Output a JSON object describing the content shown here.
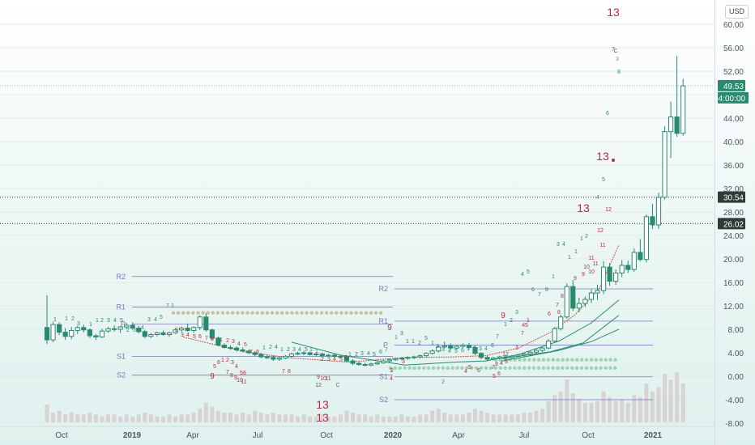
{
  "currency": "USD",
  "chart_data": {
    "type": "candlestick",
    "y_axis": {
      "range": [
        -8,
        64
      ],
      "ticks": [
        -8,
        -4,
        0,
        4,
        8,
        12,
        16,
        20,
        24,
        28,
        32,
        36,
        40,
        44,
        48,
        52,
        56,
        60
      ],
      "tick_labels": [
        "-8.00",
        "-4.00",
        "0.00",
        "4.00",
        "8.00",
        "12.00",
        "16.00",
        "20.00",
        "24.00",
        "28.00",
        "32.00",
        "36.00",
        "40.00",
        "44.00",
        "48.00",
        "52.00",
        "56.00",
        "60.00"
      ]
    },
    "x_axis": {
      "labels": [
        "Oct",
        "2019",
        "Apr",
        "Jul",
        "Oct",
        "2020",
        "Apr",
        "Jul",
        "Oct",
        "2021"
      ],
      "bold_labels": [
        "2019",
        "2020",
        "2021"
      ]
    },
    "candles_note": "weekly OHLC, first candle late Sep 2018, last candle mid Nov 2020",
    "ohlc": [
      [
        8.3,
        13.8,
        5.5,
        6.2
      ],
      [
        6.2,
        9.3,
        5.8,
        8.8
      ],
      [
        8.8,
        9.2,
        7.0,
        7.5
      ],
      [
        7.5,
        8.2,
        6.2,
        6.8
      ],
      [
        6.8,
        8.4,
        6.3,
        7.8
      ],
      [
        7.8,
        8.6,
        7.2,
        8.3
      ],
      [
        8.3,
        8.8,
        7.5,
        7.9
      ],
      [
        7.9,
        8.2,
        6.5,
        6.9
      ],
      [
        6.9,
        7.2,
        6.2,
        6.7
      ],
      [
        6.7,
        8.1,
        6.5,
        7.7
      ],
      [
        7.7,
        8.4,
        7.4,
        8.1
      ],
      [
        8.1,
        8.7,
        7.6,
        8.0
      ],
      [
        8.0,
        8.6,
        7.4,
        8.4
      ],
      [
        8.4,
        9.1,
        8.0,
        8.7
      ],
      [
        8.7,
        9.2,
        7.9,
        8.2
      ],
      [
        8.2,
        8.6,
        7.3,
        7.6
      ],
      [
        7.6,
        7.9,
        6.5,
        6.8
      ],
      [
        6.8,
        7.4,
        6.5,
        7.1
      ],
      [
        7.1,
        7.6,
        6.8,
        7.4
      ],
      [
        7.4,
        7.8,
        6.9,
        7.1
      ],
      [
        7.1,
        7.6,
        6.7,
        7.4
      ],
      [
        7.4,
        8.2,
        7.2,
        7.9
      ],
      [
        7.9,
        8.5,
        7.5,
        8.2
      ],
      [
        8.2,
        9.0,
        7.6,
        7.8
      ],
      [
        7.8,
        8.5,
        7.4,
        8.3
      ],
      [
        8.3,
        10.4,
        7.9,
        10.1
      ],
      [
        10.1,
        10.8,
        7.6,
        7.9
      ],
      [
        7.9,
        8.1,
        6.2,
        6.5
      ],
      [
        6.5,
        6.8,
        5.1,
        5.3
      ],
      [
        5.3,
        5.6,
        4.7,
        4.9
      ],
      [
        4.9,
        5.3,
        4.5,
        4.8
      ],
      [
        4.8,
        5.1,
        4.2,
        4.5
      ],
      [
        4.5,
        4.9,
        4.1,
        4.3
      ],
      [
        4.3,
        4.6,
        3.8,
        4.0
      ],
      [
        4.0,
        4.3,
        3.4,
        3.7
      ],
      [
        3.7,
        4.0,
        3.1,
        3.3
      ],
      [
        3.3,
        3.7,
        2.9,
        3.2
      ],
      [
        3.2,
        3.5,
        2.6,
        2.9
      ],
      [
        2.9,
        3.3,
        2.6,
        3.1
      ],
      [
        3.1,
        3.6,
        2.9,
        3.4
      ],
      [
        3.4,
        4.0,
        3.2,
        3.8
      ],
      [
        3.8,
        4.2,
        3.6,
        3.9
      ],
      [
        3.9,
        4.3,
        3.6,
        4.0
      ],
      [
        4.0,
        4.2,
        3.5,
        3.7
      ],
      [
        3.7,
        4.0,
        3.4,
        3.8
      ],
      [
        3.8,
        4.0,
        3.3,
        3.5
      ],
      [
        3.5,
        3.8,
        3.3,
        3.6
      ],
      [
        3.6,
        3.9,
        3.2,
        3.4
      ],
      [
        3.4,
        3.7,
        3.1,
        3.3
      ],
      [
        3.3,
        3.6,
        2.4,
        2.6
      ],
      [
        2.6,
        2.9,
        1.9,
        2.2
      ],
      [
        2.2,
        2.4,
        1.8,
        2.0
      ],
      [
        2.0,
        2.3,
        1.7,
        1.9
      ],
      [
        1.9,
        2.3,
        1.7,
        2.1
      ],
      [
        2.1,
        2.5,
        1.9,
        2.3
      ],
      [
        2.3,
        2.8,
        2.1,
        2.6
      ],
      [
        2.6,
        3.0,
        2.3,
        2.8
      ],
      [
        2.8,
        3.2,
        2.6,
        3.0
      ],
      [
        3.0,
        3.3,
        2.7,
        3.1
      ],
      [
        3.1,
        3.4,
        2.8,
        3.2
      ],
      [
        3.2,
        3.5,
        2.9,
        3.3
      ],
      [
        3.3,
        3.7,
        3.0,
        3.5
      ],
      [
        3.5,
        4.1,
        3.3,
        3.9
      ],
      [
        3.9,
        4.6,
        3.7,
        4.3
      ],
      [
        4.3,
        5.3,
        4.0,
        5.0
      ],
      [
        5.0,
        5.9,
        4.7,
        5.2
      ],
      [
        5.2,
        5.6,
        4.5,
        4.8
      ],
      [
        4.8,
        5.4,
        4.5,
        5.1
      ],
      [
        5.1,
        5.6,
        4.8,
        5.3
      ],
      [
        5.3,
        5.7,
        4.6,
        4.9
      ],
      [
        4.9,
        5.2,
        3.6,
        3.9
      ],
      [
        3.9,
        4.1,
        2.9,
        3.2
      ],
      [
        3.2,
        3.5,
        2.6,
        2.9
      ],
      [
        2.9,
        3.3,
        2.7,
        3.1
      ],
      [
        3.1,
        3.5,
        2.9,
        3.3
      ],
      [
        3.3,
        3.6,
        2.9,
        3.2
      ],
      [
        3.2,
        3.6,
        3.0,
        3.4
      ],
      [
        3.4,
        3.8,
        3.2,
        3.6
      ],
      [
        3.6,
        4.0,
        3.3,
        3.8
      ],
      [
        3.8,
        4.3,
        3.5,
        4.1
      ],
      [
        4.1,
        4.6,
        3.8,
        4.4
      ],
      [
        4.4,
        5.0,
        4.1,
        4.8
      ],
      [
        4.8,
        6.3,
        4.6,
        6.0
      ],
      [
        6.0,
        8.4,
        5.8,
        8.1
      ],
      [
        8.1,
        10.5,
        7.8,
        10.1
      ],
      [
        10.1,
        15.8,
        9.8,
        15.3
      ],
      [
        15.3,
        16.4,
        11.1,
        11.6
      ],
      [
        11.6,
        13.4,
        10.9,
        12.4
      ],
      [
        12.4,
        13.6,
        11.8,
        13.1
      ],
      [
        13.1,
        14.8,
        12.5,
        14.2
      ],
      [
        14.2,
        15.6,
        13.0,
        14.6
      ],
      [
        14.6,
        19.6,
        14.0,
        18.6
      ],
      [
        18.6,
        19.3,
        15.4,
        16.2
      ],
      [
        16.2,
        18.2,
        15.6,
        17.6
      ],
      [
        17.6,
        19.8,
        16.9,
        18.9
      ],
      [
        18.9,
        19.7,
        17.6,
        18.2
      ],
      [
        18.2,
        21.8,
        17.8,
        21.1
      ],
      [
        21.1,
        23.4,
        19.6,
        19.9
      ],
      [
        19.9,
        27.6,
        19.4,
        27.2
      ],
      [
        27.2,
        29.4,
        25.1,
        25.8
      ],
      [
        25.8,
        31.3,
        25.1,
        30.5
      ],
      [
        30.5,
        42.6,
        30.1,
        41.7
      ],
      [
        41.7,
        46.8,
        37.2,
        44.2
      ],
      [
        44.2,
        54.6,
        40.8,
        41.4
      ],
      [
        41.4,
        50.7,
        41.0,
        49.5
      ]
    ],
    "volumes": [
      0.9,
      0.5,
      0.6,
      0.4,
      0.5,
      0.4,
      0.4,
      0.5,
      0.4,
      0.3,
      0.4,
      0.4,
      0.3,
      0.4,
      0.3,
      0.4,
      0.5,
      0.4,
      0.3,
      0.3,
      0.4,
      0.3,
      0.4,
      0.4,
      0.5,
      0.7,
      1.0,
      0.8,
      0.6,
      0.5,
      0.5,
      0.4,
      0.5,
      0.4,
      0.6,
      0.5,
      0.4,
      0.5,
      0.4,
      0.4,
      0.4,
      0.3,
      0.4,
      0.3,
      0.3,
      0.4,
      0.3,
      0.3,
      0.4,
      0.6,
      0.5,
      0.4,
      0.4,
      0.3,
      0.4,
      0.3,
      0.3,
      0.3,
      0.4,
      0.3,
      0.3,
      0.4,
      0.4,
      0.6,
      0.7,
      0.5,
      0.4,
      0.4,
      0.4,
      0.5,
      0.7,
      0.6,
      0.5,
      0.4,
      0.4,
      0.4,
      0.4,
      0.4,
      0.5,
      0.5,
      0.6,
      0.7,
      1.1,
      1.4,
      1.6,
      2.2,
      1.5,
      1.2,
      1.0,
      1.0,
      1.1,
      1.6,
      1.3,
      1.1,
      1.2,
      1.0,
      1.4,
      1.3,
      2.0,
      1.6,
      1.8,
      2.5,
      2.2,
      2.6,
      2.0
    ],
    "pivots_2019": {
      "R2": 17.0,
      "R1": 11.8,
      "P": 8.9,
      "S1": 3.4,
      "S2": 0.2
    },
    "pivots_2020": {
      "R2": 14.9,
      "R1": 9.4,
      "P": 5.3,
      "S1": -0.1,
      "S2": -4.0
    },
    "price_lines": [
      {
        "value": 30.54,
        "label": "30.54"
      },
      {
        "value": 26.02,
        "label": "26.02"
      }
    ],
    "last_price": {
      "value": 49.53,
      "label": "49.53",
      "countdown": "04:00:00"
    },
    "count_labels_large": [
      "13",
      "13",
      "13",
      "13",
      "13"
    ],
    "colors": {
      "up": "#2a8a6e",
      "down": "#2a8a6e",
      "pivot": "#7d77b8",
      "count": "#b03045",
      "setup": "#2a8a6e",
      "price_tag": "#2a8a6e"
    }
  }
}
